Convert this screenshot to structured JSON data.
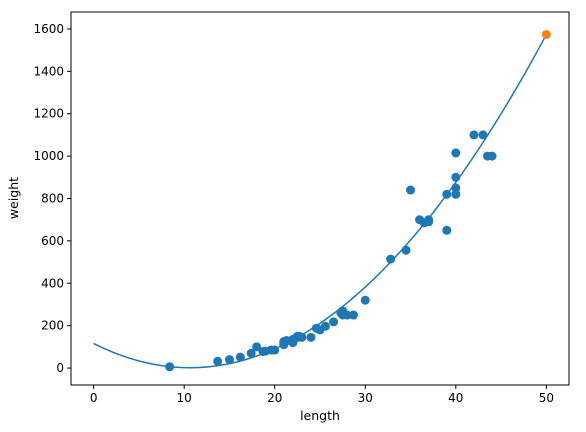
{
  "chart_data": {
    "type": "scatter",
    "title": "",
    "xlabel": "length",
    "ylabel": "weight",
    "xlim": [
      -2.5,
      52.5
    ],
    "ylim": [
      -80,
      1680
    ],
    "xticks": [
      0,
      10,
      20,
      30,
      40,
      50
    ],
    "yticks": [
      0,
      200,
      400,
      600,
      800,
      1000,
      1200,
      1400,
      1600
    ],
    "grid": false,
    "legend": "none",
    "colors": {
      "points": "#1f77b4",
      "curve": "#1f77b4",
      "highlight": "#ff7f0e"
    },
    "series": [
      {
        "kind": "scatter",
        "color": "#1f77b4",
        "points": [
          [
            8.4,
            5.9
          ],
          [
            13.7,
            32
          ],
          [
            15.0,
            40
          ],
          [
            16.2,
            51.5
          ],
          [
            17.4,
            70
          ],
          [
            18.0,
            100
          ],
          [
            18.7,
            78
          ],
          [
            19.0,
            80
          ],
          [
            19.6,
            85
          ],
          [
            20.0,
            85
          ],
          [
            21.0,
            110
          ],
          [
            21.0,
            115
          ],
          [
            21.0,
            125
          ],
          [
            21.3,
            130
          ],
          [
            22.0,
            120
          ],
          [
            22.0,
            120
          ],
          [
            22.0,
            130
          ],
          [
            22.0,
            135
          ],
          [
            22.0,
            130
          ],
          [
            22.5,
            150
          ],
          [
            22.5,
            145
          ],
          [
            22.7,
            150
          ],
          [
            23.0,
            145
          ],
          [
            24.0,
            145
          ],
          [
            24.6,
            188
          ],
          [
            25.0,
            180
          ],
          [
            25.6,
            197
          ],
          [
            26.5,
            218
          ],
          [
            27.3,
            260
          ],
          [
            27.5,
            250
          ],
          [
            27.5,
            260
          ],
          [
            27.5,
            270
          ],
          [
            28.0,
            250
          ],
          [
            28.7,
            250
          ],
          [
            30.0,
            320
          ],
          [
            32.8,
            514
          ],
          [
            34.5,
            556
          ],
          [
            35.0,
            840
          ],
          [
            36.5,
            685
          ],
          [
            36.0,
            700
          ],
          [
            37.0,
            700
          ],
          [
            37.0,
            690
          ],
          [
            39.0,
            650
          ],
          [
            39.0,
            820
          ],
          [
            40.0,
            850
          ],
          [
            40.0,
            900
          ],
          [
            40.0,
            1015
          ],
          [
            40.0,
            820
          ],
          [
            42.0,
            1100
          ],
          [
            43.0,
            1100
          ],
          [
            43.5,
            1000
          ],
          [
            44.0,
            1000
          ]
        ]
      },
      {
        "kind": "curve",
        "color": "#1f77b4",
        "x_range": [
          0,
          50
        ],
        "coefficients": {
          "a": 1.0143,
          "b": -21.5577,
          "c": 116.0502
        },
        "formula": "weight = a*length^2 + b*length + c"
      },
      {
        "kind": "scatter",
        "color": "#ff7f0e",
        "points": [
          [
            50,
            1573.98
          ]
        ]
      }
    ]
  }
}
